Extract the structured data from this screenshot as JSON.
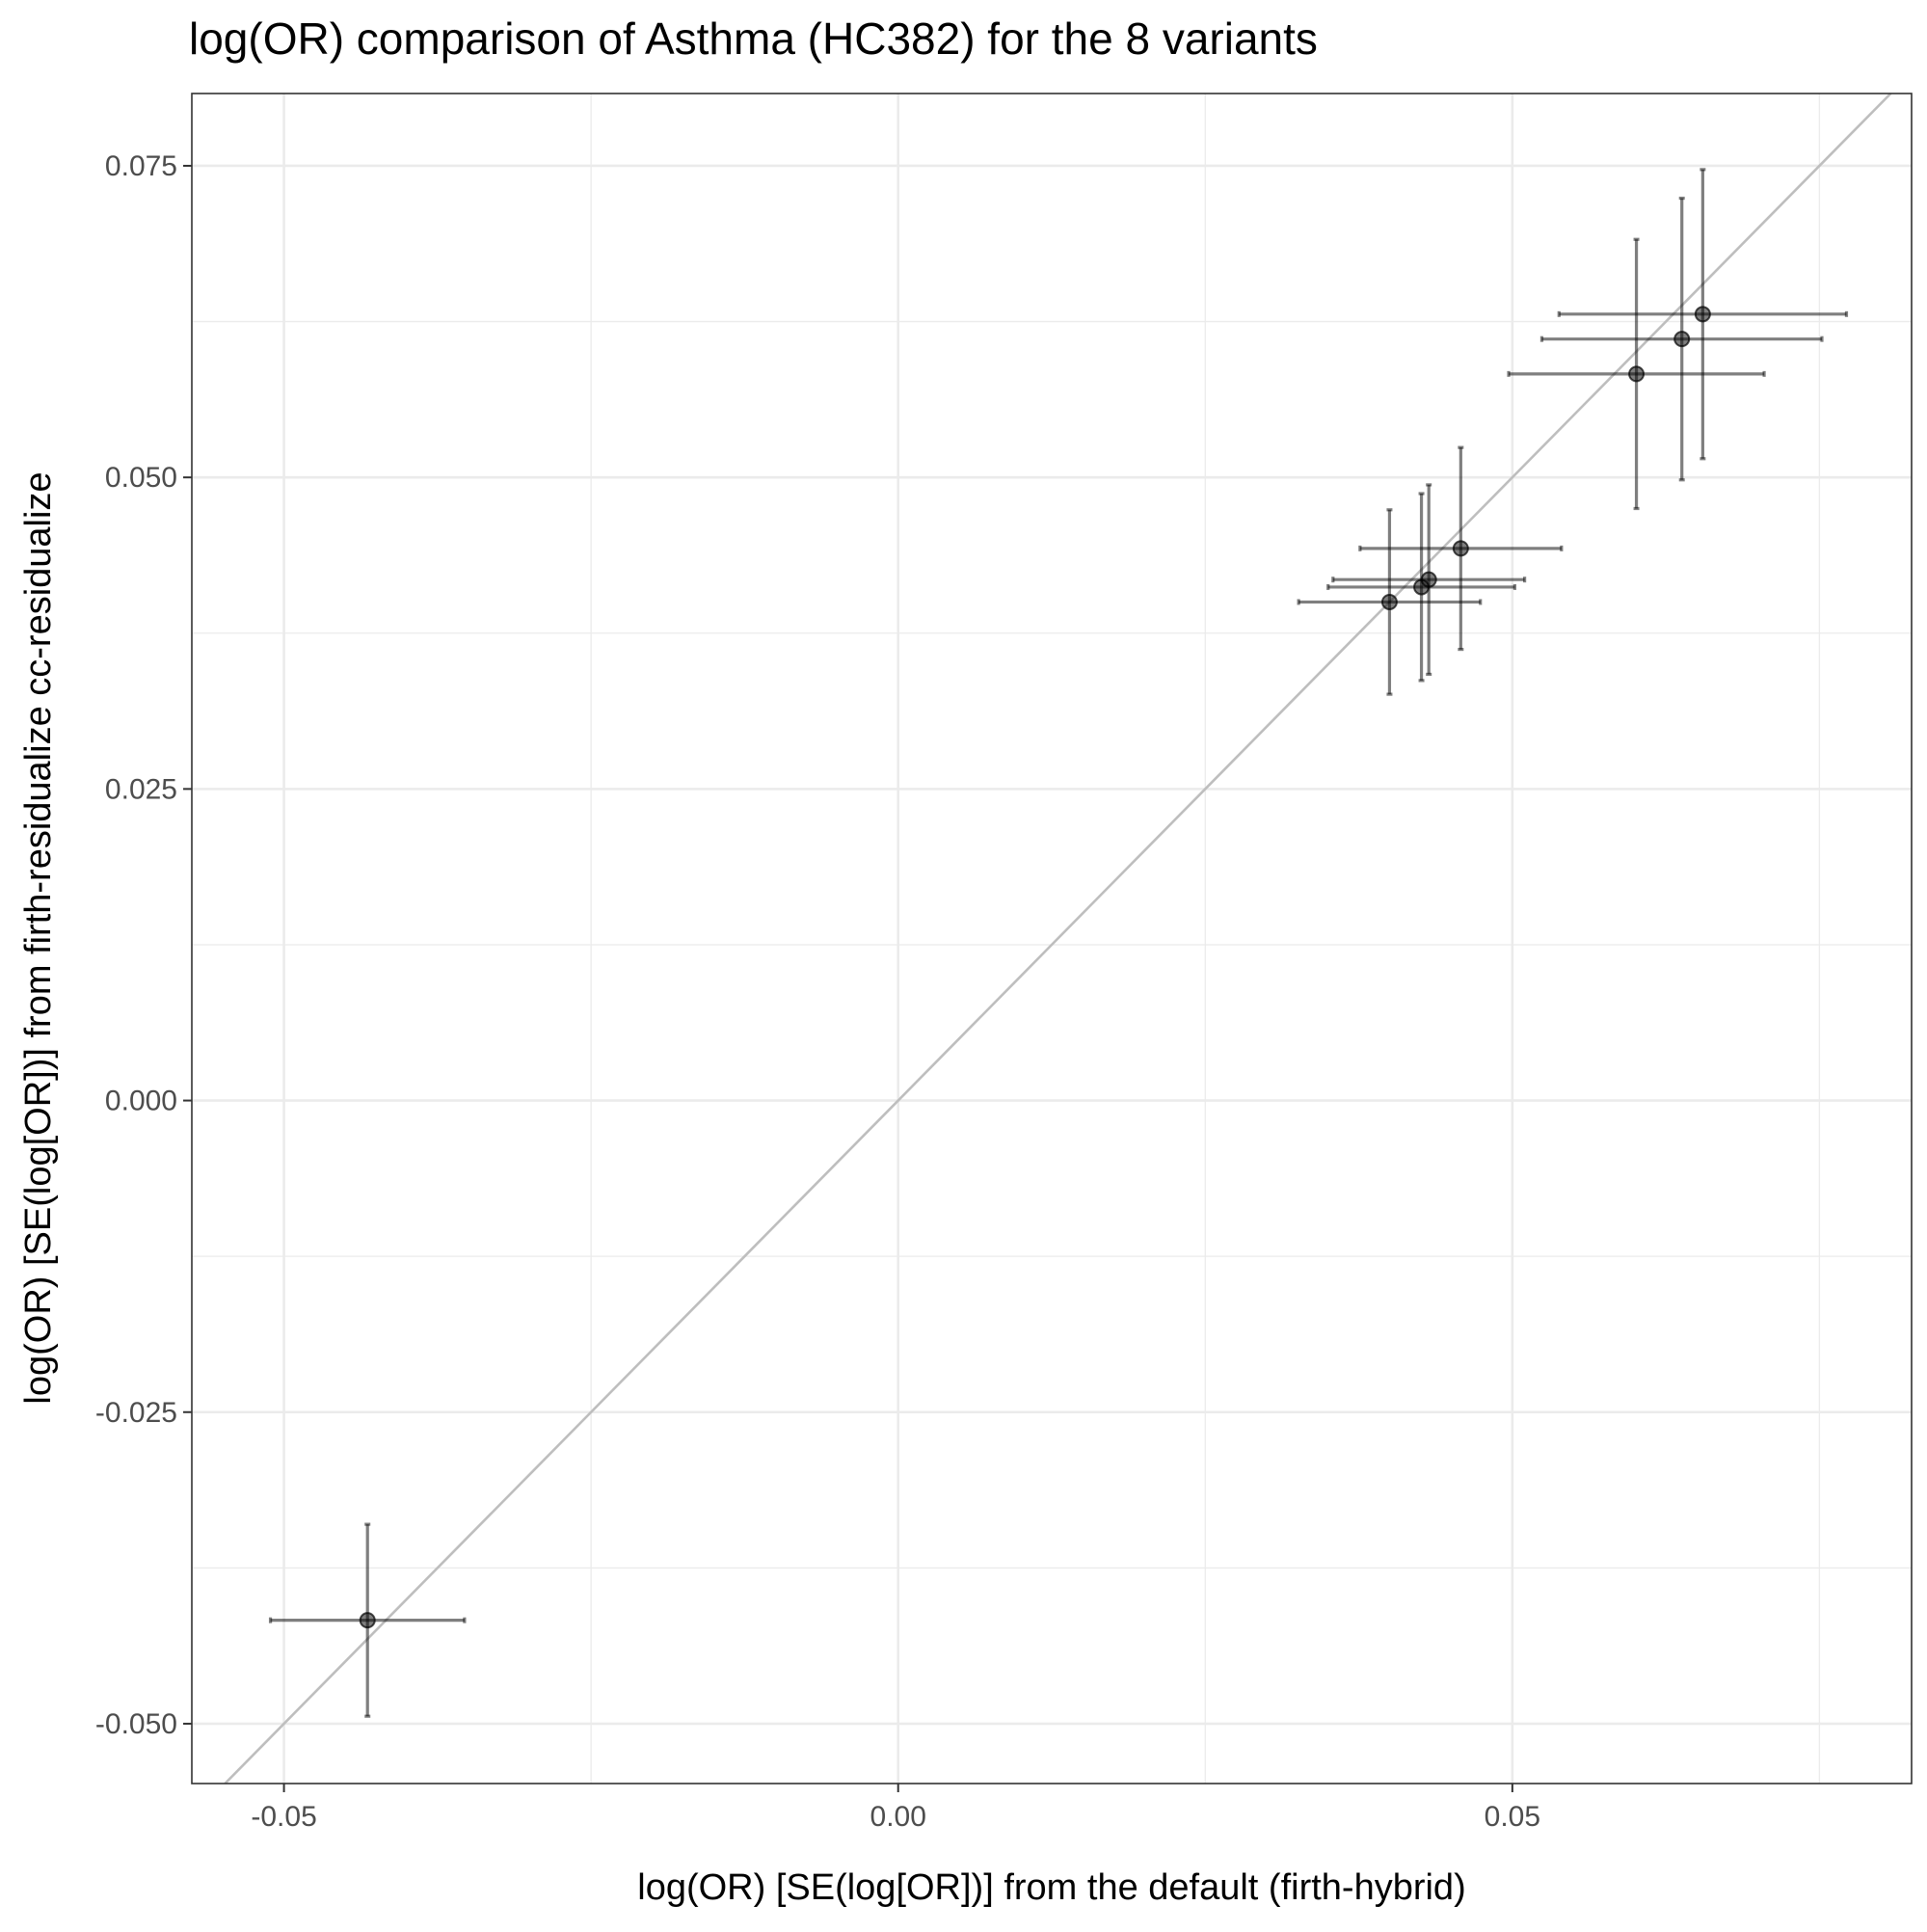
{
  "chart_data": {
    "type": "scatter",
    "title": "log(OR) comparison of Asthma (HC382) for the 8 variants",
    "xlabel": "log(OR) [SE(log[OR])] from the default (firth-hybrid)",
    "ylabel": "log(OR) [SE(log[OR])] from firth-residualize cc-residualize",
    "xlim": [
      -0.0575,
      0.0825
    ],
    "ylim": [
      -0.0548,
      0.0808
    ],
    "x_ticks": [
      -0.05,
      0.0,
      0.05
    ],
    "x_tick_labels": [
      "-0.05",
      "0.00",
      "0.05"
    ],
    "y_ticks": [
      -0.05,
      -0.025,
      0.0,
      0.025,
      0.05,
      0.075
    ],
    "y_tick_labels": [
      "-0.050",
      "-0.025",
      "0.000",
      "0.025",
      "0.050",
      "0.075"
    ],
    "x_minor_ticks": [
      -0.025,
      0.025,
      0.075
    ],
    "y_minor_ticks": [
      -0.0375,
      -0.0125,
      0.0125,
      0.0375,
      0.0625
    ],
    "grid": true,
    "reference_line": {
      "type": "identity",
      "slope": 1,
      "intercept": 0
    },
    "points": [
      {
        "x": -0.0432,
        "y": -0.0417,
        "x_lo": -0.0511,
        "x_hi": -0.0353,
        "y_lo": -0.0494,
        "y_hi": -0.034
      },
      {
        "x": 0.04,
        "y": 0.04,
        "x_lo": 0.0326,
        "x_hi": 0.0474,
        "y_lo": 0.0326,
        "y_hi": 0.0474
      },
      {
        "x": 0.0426,
        "y": 0.0412,
        "x_lo": 0.035,
        "x_hi": 0.0502,
        "y_lo": 0.0337,
        "y_hi": 0.0487
      },
      {
        "x": 0.0432,
        "y": 0.0418,
        "x_lo": 0.0354,
        "x_hi": 0.051,
        "y_lo": 0.0342,
        "y_hi": 0.0494
      },
      {
        "x": 0.0458,
        "y": 0.0443,
        "x_lo": 0.0376,
        "x_hi": 0.054,
        "y_lo": 0.0362,
        "y_hi": 0.0524
      },
      {
        "x": 0.0601,
        "y": 0.0583,
        "x_lo": 0.0497,
        "x_hi": 0.0705,
        "y_lo": 0.0475,
        "y_hi": 0.0691
      },
      {
        "x": 0.0638,
        "y": 0.0611,
        "x_lo": 0.0524,
        "x_hi": 0.0752,
        "y_lo": 0.0498,
        "y_hi": 0.0724
      },
      {
        "x": 0.0655,
        "y": 0.0631,
        "x_lo": 0.0538,
        "x_hi": 0.0772,
        "y_lo": 0.0515,
        "y_hi": 0.0747
      }
    ]
  }
}
